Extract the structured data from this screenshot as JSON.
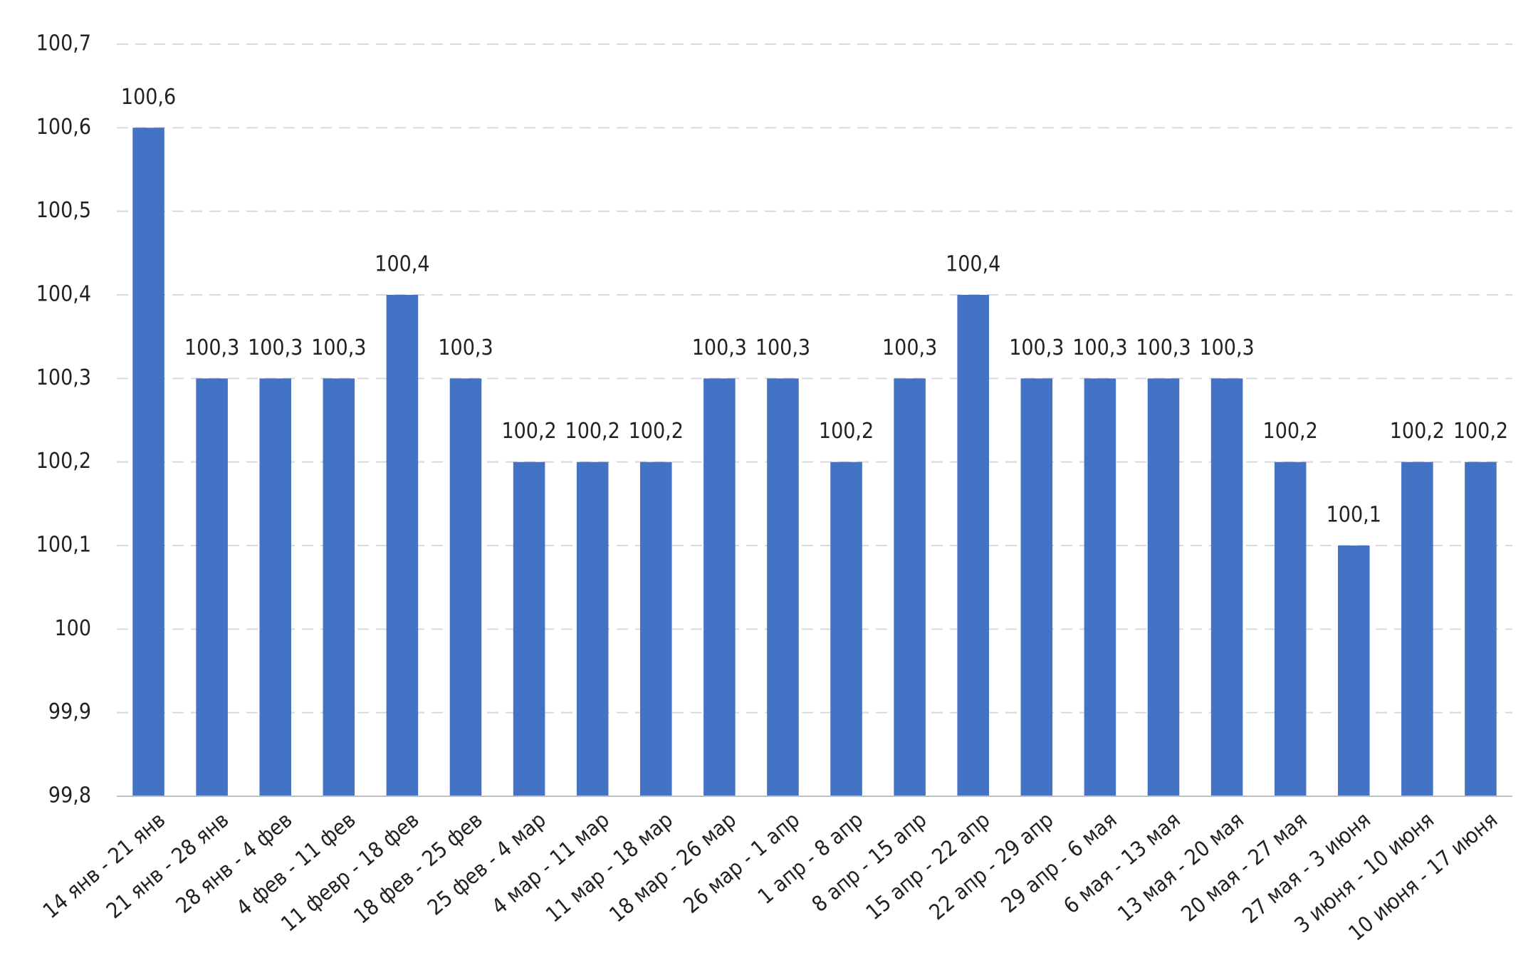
{
  "chart_data": {
    "type": "bar",
    "categories": [
      "14 янв - 21 янв",
      "21 янв - 28 янв",
      "28 янв - 4 фев",
      "4 фев - 11 фев",
      "11 февр - 18 фев",
      "18 фев - 25 фев",
      "25 фев - 4 мар",
      "4 мар - 11 мар",
      "11 мар - 18 мар",
      "18 мар - 26 мар",
      "26 мар - 1 апр",
      "1 апр - 8 апр",
      "8 апр - 15 апр",
      "15 апр - 22 апр",
      "22 апр - 29 апр",
      "29 апр - 6 мая",
      "6 мая - 13 мая",
      "13 мая - 20 мая",
      "20 мая - 27 мая",
      "27 мая - 3 июня",
      "3 июня - 10 июня",
      "10 июня - 17 июня"
    ],
    "values": [
      100.6,
      100.3,
      100.3,
      100.3,
      100.4,
      100.3,
      100.2,
      100.2,
      100.2,
      100.3,
      100.3,
      100.2,
      100.3,
      100.4,
      100.3,
      100.3,
      100.3,
      100.3,
      100.2,
      100.1,
      100.2,
      100.2
    ],
    "value_labels": [
      "100,6",
      "100,3",
      "100,3",
      "100,3",
      "100,4",
      "100,3",
      "100,2",
      "100,2",
      "100,2",
      "100,3",
      "100,3",
      "100,2",
      "100,3",
      "100,4",
      "100,3",
      "100,3",
      "100,3",
      "100,3",
      "100,2",
      "100,1",
      "100,2",
      "100,2"
    ],
    "color": "#4472c4",
    "ylim": [
      99.8,
      100.7
    ],
    "yticks": [
      {
        "value": 99.8,
        "label": "99,8"
      },
      {
        "value": 99.9,
        "label": "99,9"
      },
      100,
      {
        "value": 100.1,
        "label": "100,1"
      },
      {
        "value": 100.2,
        "label": "100,2"
      },
      {
        "value": 100.3,
        "label": "100,3"
      },
      {
        "value": 100.4,
        "label": "100,4"
      },
      {
        "value": 100.5,
        "label": "100,5"
      },
      {
        "value": 100.6,
        "label": "100,6"
      },
      {
        "value": 100.7,
        "label": "100,7"
      }
    ],
    "grid": true
  }
}
